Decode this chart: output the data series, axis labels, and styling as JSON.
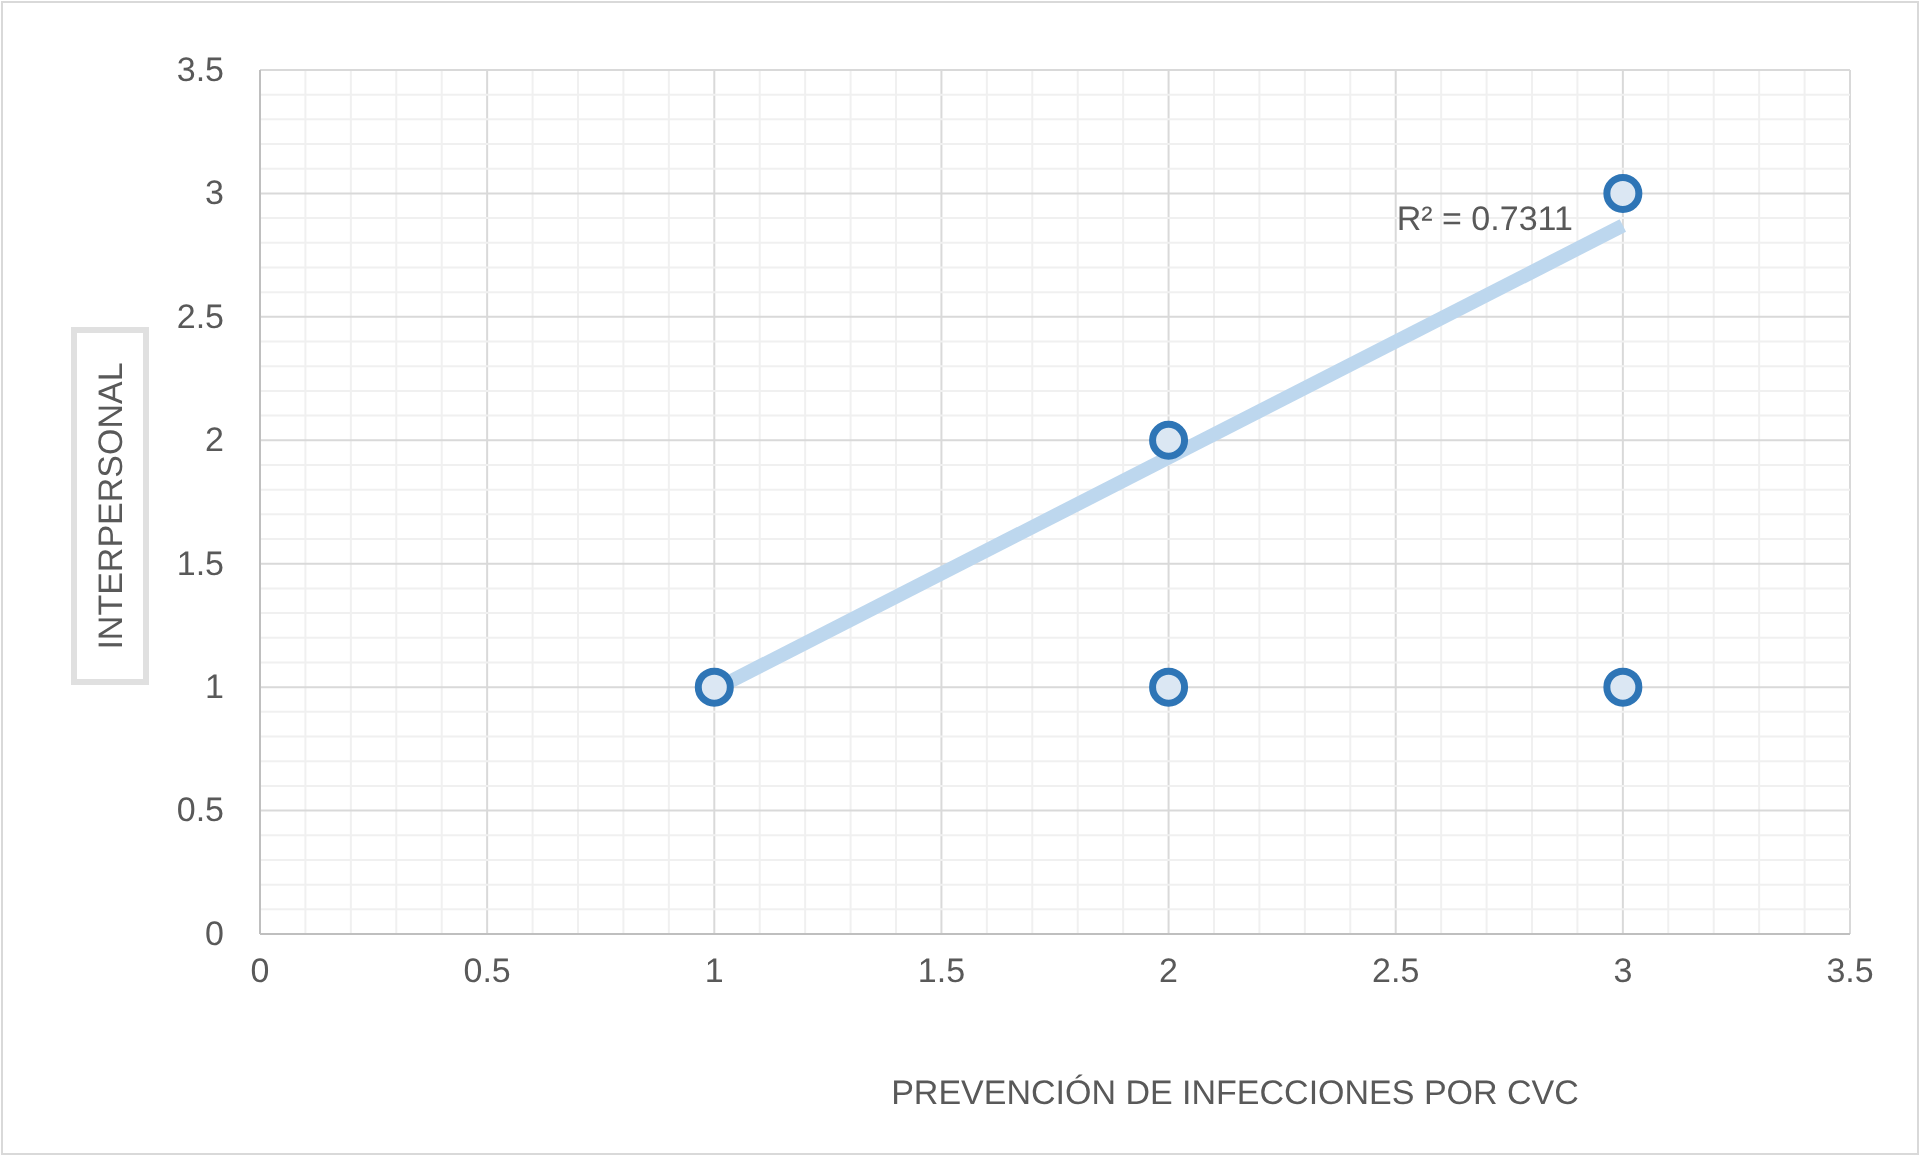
{
  "chart_data": {
    "type": "scatter",
    "xlabel": "PREVENCIÓN DE INFECCIONES POR CVC",
    "ylabel": "INTERPERSONAL",
    "xlim": [
      0,
      3.5
    ],
    "ylim": [
      0,
      3.5
    ],
    "xticks": [
      0,
      0.5,
      1,
      1.5,
      2,
      2.5,
      3,
      3.5
    ],
    "yticks": [
      0,
      0.5,
      1,
      1.5,
      2,
      2.5,
      3,
      3.5
    ],
    "grid": true,
    "marker": "circle",
    "series": [
      {
        "type": "line",
        "marker": "none",
        "color": "#bdd7ee",
        "x": [
          1,
          3
        ],
        "values": [
          0.99,
          2.87
        ]
      },
      {
        "color": "#2e75b6",
        "x": [
          1,
          2,
          2,
          3,
          3
        ],
        "values": [
          1,
          2,
          1,
          3,
          1
        ]
      }
    ],
    "annotations": [
      {
        "text": "R² = 0.7311",
        "x": 3,
        "y": 2.87
      }
    ]
  }
}
